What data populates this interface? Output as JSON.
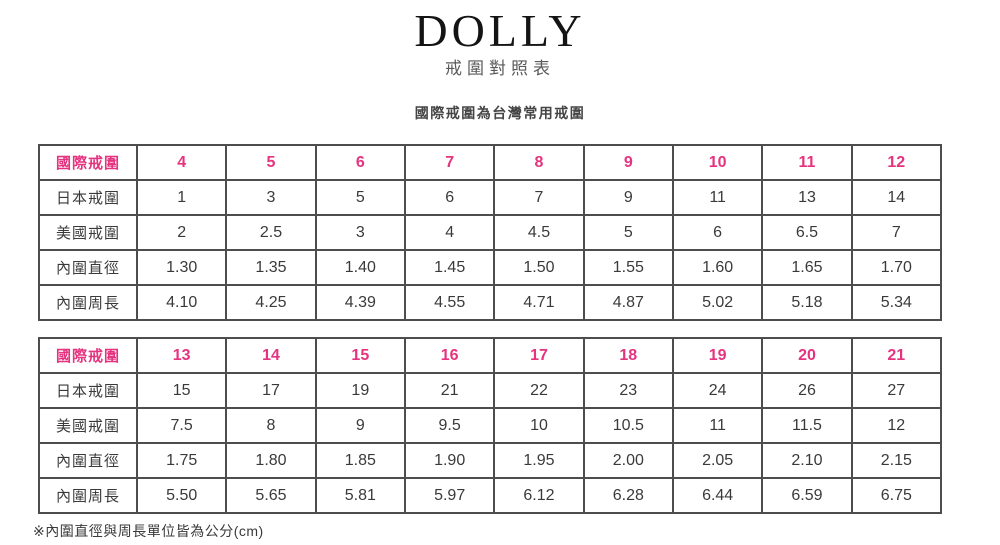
{
  "header": {
    "brand": "DOLLY",
    "title": "戒圍對照表",
    "subtitle": "國際戒圍為台灣常用戒圍"
  },
  "colors": {
    "accent_pink": "#e5337f",
    "border": "#4d4d4d",
    "text": "#3a3a3a"
  },
  "tables": [
    {
      "rows": [
        {
          "label": "國際戒圍",
          "highlight": true,
          "values": [
            "4",
            "5",
            "6",
            "7",
            "8",
            "9",
            "10",
            "11",
            "12"
          ]
        },
        {
          "label": "日本戒圍",
          "highlight": false,
          "values": [
            "1",
            "3",
            "5",
            "6",
            "7",
            "9",
            "11",
            "13",
            "14"
          ]
        },
        {
          "label": "美國戒圍",
          "highlight": false,
          "values": [
            "2",
            "2.5",
            "3",
            "4",
            "4.5",
            "5",
            "6",
            "6.5",
            "7"
          ]
        },
        {
          "label": "內圍直徑",
          "highlight": false,
          "values": [
            "1.30",
            "1.35",
            "1.40",
            "1.45",
            "1.50",
            "1.55",
            "1.60",
            "1.65",
            "1.70"
          ]
        },
        {
          "label": "內圍周長",
          "highlight": false,
          "values": [
            "4.10",
            "4.25",
            "4.39",
            "4.55",
            "4.71",
            "4.87",
            "5.02",
            "5.18",
            "5.34"
          ]
        }
      ]
    },
    {
      "rows": [
        {
          "label": "國際戒圍",
          "highlight": true,
          "values": [
            "13",
            "14",
            "15",
            "16",
            "17",
            "18",
            "19",
            "20",
            "21"
          ]
        },
        {
          "label": "日本戒圍",
          "highlight": false,
          "values": [
            "15",
            "17",
            "19",
            "21",
            "22",
            "23",
            "24",
            "26",
            "27"
          ]
        },
        {
          "label": "美國戒圍",
          "highlight": false,
          "values": [
            "7.5",
            "8",
            "9",
            "9.5",
            "10",
            "10.5",
            "11",
            "11.5",
            "12"
          ]
        },
        {
          "label": "內圍直徑",
          "highlight": false,
          "values": [
            "1.75",
            "1.80",
            "1.85",
            "1.90",
            "1.95",
            "2.00",
            "2.05",
            "2.10",
            "2.15"
          ]
        },
        {
          "label": "內圍周長",
          "highlight": false,
          "values": [
            "5.50",
            "5.65",
            "5.81",
            "5.97",
            "6.12",
            "6.28",
            "6.44",
            "6.59",
            "6.75"
          ]
        }
      ]
    }
  ],
  "footnote": "※內圍直徑與周長單位皆為公分(cm)"
}
